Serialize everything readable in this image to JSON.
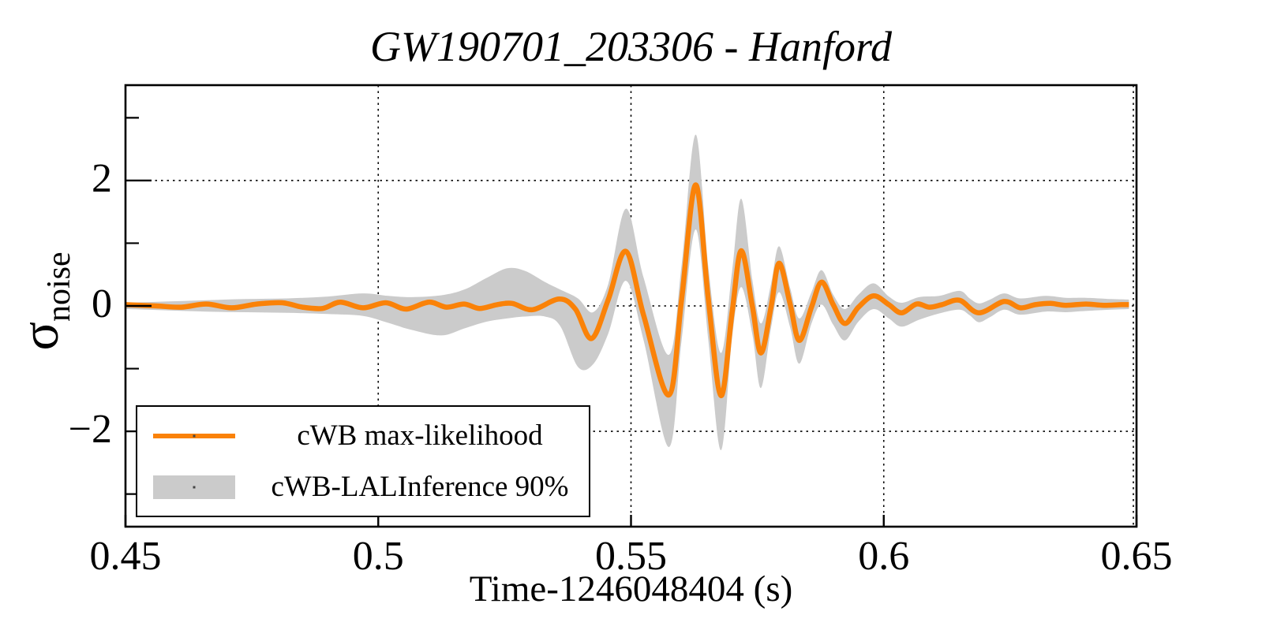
{
  "page": {
    "background": "#ffffff"
  },
  "chart_data": {
    "type": "line",
    "title": "GW190701_203306 - Hanford",
    "xlabel": "Time-1246048404 (s)",
    "ylabel": "σ_noise",
    "ylabel_main": "σ",
    "ylabel_sub": "noise",
    "xlim": [
      0.45,
      0.65
    ],
    "ylim": [
      -3.52,
      3.52
    ],
    "xticks": {
      "values": [
        0.45,
        0.5,
        0.55,
        0.6,
        0.65
      ],
      "labels": [
        "0.45",
        "0.5",
        "0.55",
        "0.6",
        "0.65"
      ]
    },
    "yticks": {
      "values": [
        2,
        0,
        -2
      ],
      "labels": [
        "2",
        "0",
        "−2"
      ]
    },
    "yticks_minor": [
      3,
      1,
      -1,
      -3
    ],
    "grid": {
      "style": "dotted",
      "x_values": [
        0.5,
        0.55,
        0.6,
        0.65
      ],
      "y_values": [
        2,
        0,
        -2
      ]
    },
    "colors": {
      "waveform": "#FA8208",
      "band": "#CBCBCB",
      "axis": "#000000"
    },
    "legend": {
      "position": "lower-left",
      "entries": [
        {
          "label": "cWB max-likelihood",
          "type": "line",
          "color": "#FA8208"
        },
        {
          "label": "cWB-LALInference 90%",
          "type": "band",
          "color": "#CBCBCB"
        }
      ]
    },
    "series": [
      {
        "name": "cWB max-likelihood",
        "type": "line",
        "color": "#FA8208",
        "points": [
          [
            0.45,
            0.02
          ],
          [
            0.456,
            0.0
          ],
          [
            0.461,
            -0.02
          ],
          [
            0.466,
            0.03
          ],
          [
            0.471,
            -0.03
          ],
          [
            0.476,
            0.03
          ],
          [
            0.481,
            0.05
          ],
          [
            0.485,
            -0.02
          ],
          [
            0.489,
            -0.04
          ],
          [
            0.4925,
            0.06
          ],
          [
            0.497,
            -0.03
          ],
          [
            0.5015,
            0.05
          ],
          [
            0.5055,
            -0.05
          ],
          [
            0.51,
            0.06
          ],
          [
            0.5135,
            -0.02
          ],
          [
            0.517,
            0.03
          ],
          [
            0.52,
            -0.04
          ],
          [
            0.5235,
            0.02
          ],
          [
            0.5265,
            0.04
          ],
          [
            0.5305,
            -0.06
          ],
          [
            0.5358,
            0.11
          ],
          [
            0.539,
            -0.05
          ],
          [
            0.5422,
            -0.52
          ],
          [
            0.5455,
            0.1
          ],
          [
            0.549,
            0.87
          ],
          [
            0.5525,
            -0.15
          ],
          [
            0.5575,
            -1.42
          ],
          [
            0.56,
            0.1
          ],
          [
            0.5628,
            1.93
          ],
          [
            0.5653,
            0.1
          ],
          [
            0.5678,
            -1.43
          ],
          [
            0.57,
            -0.1
          ],
          [
            0.5718,
            0.88
          ],
          [
            0.574,
            0.0
          ],
          [
            0.5757,
            -0.75
          ],
          [
            0.5777,
            -0.02
          ],
          [
            0.5793,
            0.68
          ],
          [
            0.5815,
            0.02
          ],
          [
            0.5833,
            -0.55
          ],
          [
            0.5857,
            -0.02
          ],
          [
            0.5877,
            0.38
          ],
          [
            0.59,
            0.02
          ],
          [
            0.5923,
            -0.28
          ],
          [
            0.595,
            -0.02
          ],
          [
            0.598,
            0.16
          ],
          [
            0.601,
            0.02
          ],
          [
            0.6035,
            -0.11
          ],
          [
            0.6065,
            0.03
          ],
          [
            0.609,
            -0.02
          ],
          [
            0.6115,
            0.02
          ],
          [
            0.615,
            0.09
          ],
          [
            0.6188,
            -0.11
          ],
          [
            0.6238,
            0.07
          ],
          [
            0.627,
            -0.03
          ],
          [
            0.63,
            0.02
          ],
          [
            0.633,
            0.04
          ],
          [
            0.636,
            0.01
          ],
          [
            0.64,
            0.03
          ],
          [
            0.6435,
            0.01
          ],
          [
            0.647,
            0.02
          ],
          [
            0.6485,
            0.02
          ]
        ]
      },
      {
        "name": "cWB-LALInference 90%",
        "type": "band",
        "color": "#CBCBCB",
        "points": [
          [
            0.45,
            -0.05,
            0.05
          ],
          [
            0.458,
            -0.07,
            0.07
          ],
          [
            0.466,
            -0.09,
            0.09
          ],
          [
            0.474,
            -0.1,
            0.11
          ],
          [
            0.482,
            -0.11,
            0.12
          ],
          [
            0.49,
            -0.13,
            0.15
          ],
          [
            0.497,
            -0.16,
            0.2
          ],
          [
            0.502,
            -0.27,
            0.16
          ],
          [
            0.5065,
            -0.38,
            0.14
          ],
          [
            0.5125,
            -0.47,
            0.17
          ],
          [
            0.517,
            -0.36,
            0.26
          ],
          [
            0.5215,
            -0.25,
            0.45
          ],
          [
            0.5255,
            -0.2,
            0.6
          ],
          [
            0.529,
            -0.17,
            0.56
          ],
          [
            0.533,
            -0.17,
            0.38
          ],
          [
            0.536,
            -0.32,
            0.26
          ],
          [
            0.5395,
            -0.97,
            0.12
          ],
          [
            0.5425,
            -0.93,
            -0.1
          ],
          [
            0.5455,
            -0.44,
            0.35
          ],
          [
            0.549,
            0.4,
            1.55
          ],
          [
            0.5525,
            -0.55,
            0.45
          ],
          [
            0.5575,
            -2.25,
            -0.78
          ],
          [
            0.56,
            -0.55,
            0.65
          ],
          [
            0.5628,
            1.22,
            2.73
          ],
          [
            0.5653,
            -0.55,
            0.62
          ],
          [
            0.5678,
            -2.3,
            -0.75
          ],
          [
            0.57,
            -0.5,
            0.55
          ],
          [
            0.5718,
            0.3,
            1.71
          ],
          [
            0.574,
            -0.45,
            0.42
          ],
          [
            0.5757,
            -1.31,
            -0.28
          ],
          [
            0.5777,
            -0.35,
            0.35
          ],
          [
            0.5793,
            0.22,
            0.95
          ],
          [
            0.5815,
            -0.35,
            0.28
          ],
          [
            0.5833,
            -0.92,
            -0.2
          ],
          [
            0.5857,
            -0.28,
            0.22
          ],
          [
            0.5877,
            0.02,
            0.57
          ],
          [
            0.59,
            -0.3,
            0.18
          ],
          [
            0.5923,
            -0.55,
            -0.05
          ],
          [
            0.595,
            -0.25,
            0.18
          ],
          [
            0.598,
            -0.05,
            0.36
          ],
          [
            0.601,
            -0.2,
            0.15
          ],
          [
            0.6035,
            -0.33,
            0.05
          ],
          [
            0.607,
            -0.22,
            0.14
          ],
          [
            0.611,
            -0.12,
            0.16
          ],
          [
            0.615,
            -0.06,
            0.24
          ],
          [
            0.617,
            -0.15,
            0.12
          ],
          [
            0.6188,
            -0.26,
            0.04
          ],
          [
            0.621,
            -0.18,
            0.1
          ],
          [
            0.6238,
            -0.06,
            0.2
          ],
          [
            0.627,
            -0.14,
            0.12
          ],
          [
            0.632,
            -0.09,
            0.16
          ],
          [
            0.636,
            -0.1,
            0.13
          ],
          [
            0.64,
            -0.08,
            0.13
          ],
          [
            0.645,
            -0.06,
            0.11
          ],
          [
            0.6485,
            -0.05,
            0.1
          ]
        ]
      }
    ]
  }
}
